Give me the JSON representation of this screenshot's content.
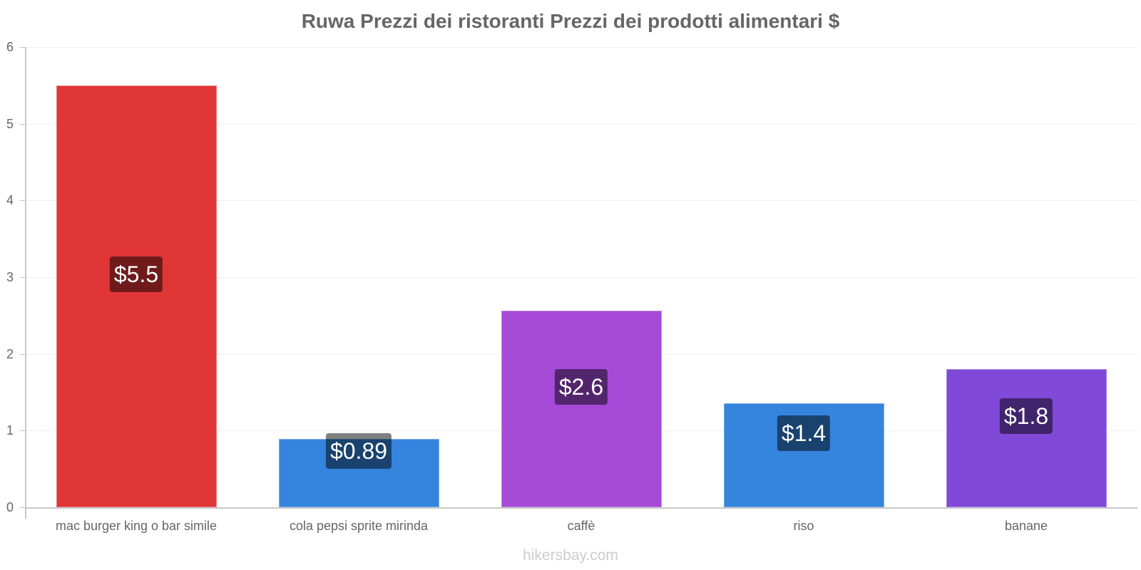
{
  "chart_data": {
    "type": "bar",
    "title": "Ruwa Prezzi dei ristoranti Prezzi dei prodotti alimentari $",
    "categories": [
      "mac burger king o bar simile",
      "cola pepsi sprite mirinda",
      "caffè",
      "riso",
      "banane"
    ],
    "values": [
      5.5,
      0.89,
      2.56,
      1.36,
      1.8
    ],
    "value_labels": [
      "$5.5",
      "$0.89",
      "$2.6",
      "$1.4",
      "$1.8"
    ],
    "colors": [
      "#e03636",
      "#3584de",
      "#a64ad8",
      "#3584de",
      "#8049d8"
    ],
    "xlabel": "",
    "ylabel": "",
    "ylim": [
      0,
      6
    ],
    "yticks": [
      "0",
      "1",
      "2",
      "3",
      "4",
      "5",
      "6"
    ],
    "grid": true,
    "legend": null
  },
  "watermark": "hikersbay.com"
}
